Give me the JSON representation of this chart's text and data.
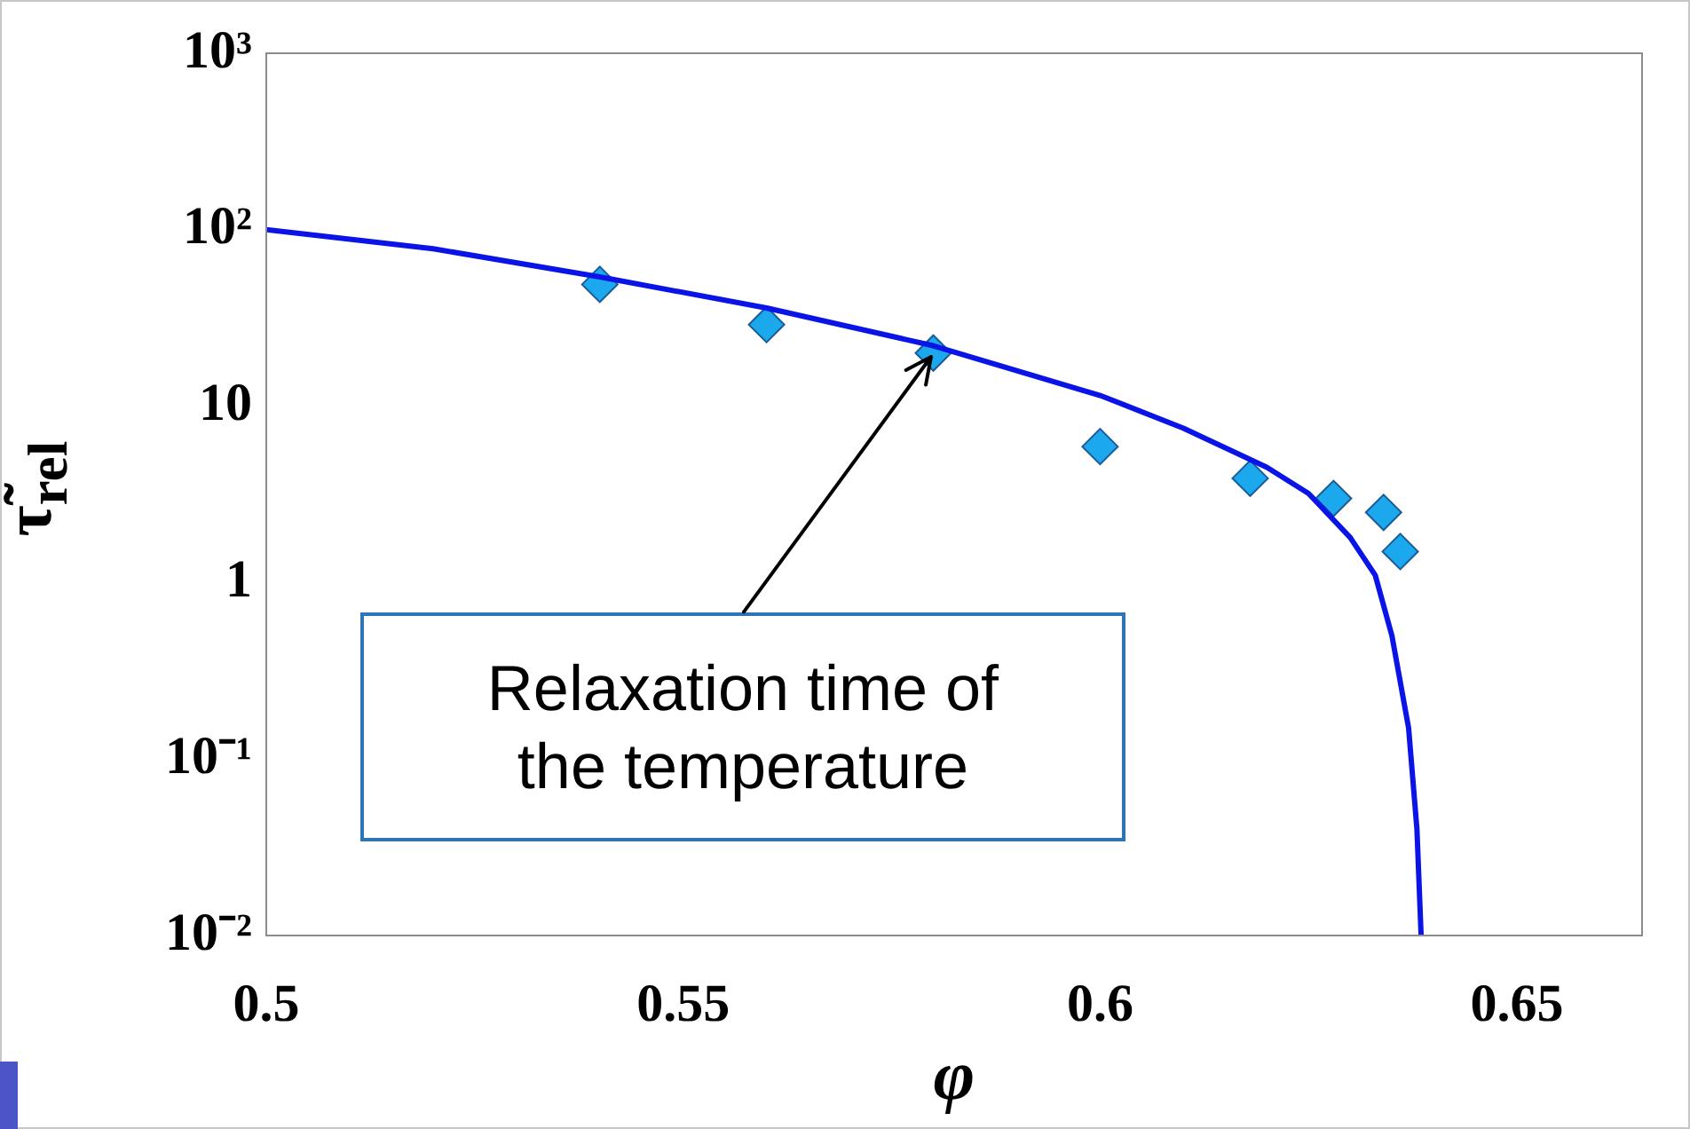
{
  "chart_data": {
    "type": "scatter",
    "xlabel": "φ",
    "ylabel": "τ̃$_{rel}$",
    "log": "y",
    "grid": false,
    "legend": false,
    "xlim": [
      0.5,
      0.665
    ],
    "xticks": [
      0.5,
      0.55,
      0.6,
      0.65
    ],
    "ylim": [
      0.01,
      1000
    ],
    "yticks": [
      {
        "value": 1000,
        "label": "10³"
      },
      {
        "value": 100,
        "label": "10²"
      },
      {
        "value": 10,
        "label": "10"
      },
      {
        "value": 1,
        "label": "1"
      },
      {
        "value": 0.1,
        "label": "10⁻¹"
      },
      {
        "value": 0.01,
        "label": "10⁻²"
      }
    ],
    "series": [
      {
        "type": "line",
        "color": "#0a14e6",
        "marker": "none",
        "line_style": "solid",
        "x": [
          0.5,
          0.52,
          0.54,
          0.56,
          0.58,
          0.6,
          0.61,
          0.62,
          0.625,
          0.63,
          0.633,
          0.635,
          0.637,
          0.638,
          0.6385
        ],
        "values": [
          100,
          78,
          54,
          36,
          22,
          11.5,
          7.5,
          4.5,
          3.2,
          1.8,
          1.1,
          0.5,
          0.15,
          0.04,
          0.01
        ]
      },
      {
        "type": "scatter",
        "color": "#1ca8ec",
        "marker": "diamond",
        "x": [
          0.54,
          0.56,
          0.58,
          0.6,
          0.618,
          0.628,
          0.634,
          0.636
        ],
        "values": [
          49,
          29,
          20,
          5.9,
          3.9,
          3.0,
          2.5,
          1.5
        ]
      }
    ],
    "annotations": [
      {
        "text": "Relaxation time of the temperature",
        "x": 0.58,
        "y": 20
      }
    ]
  }
}
